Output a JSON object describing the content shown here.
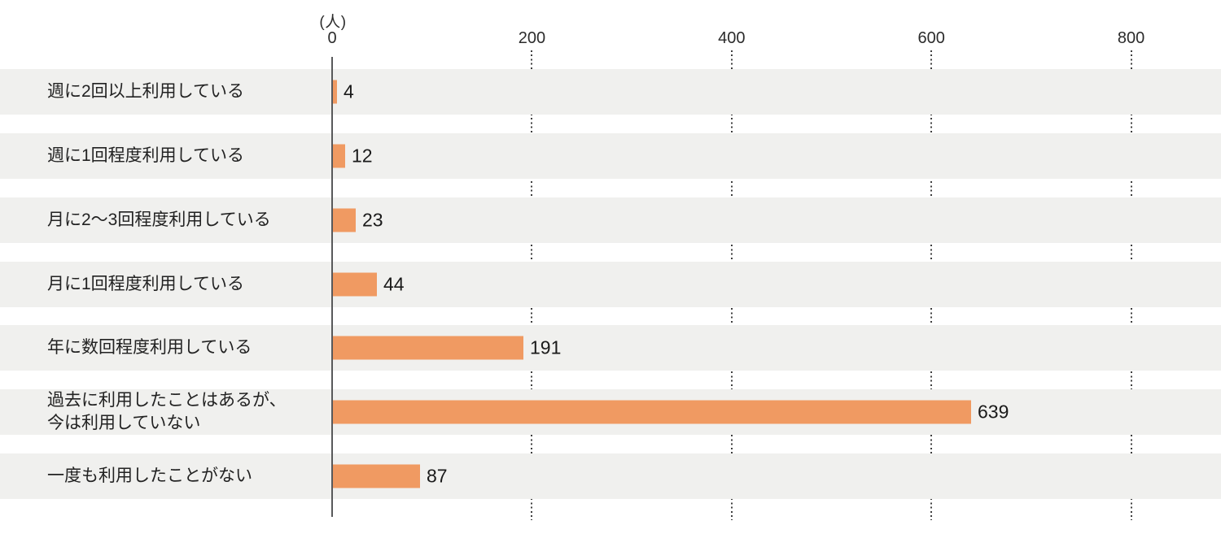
{
  "chart_data": {
    "type": "bar",
    "orientation": "horizontal",
    "title": "",
    "unit_label": "(人)",
    "xlabel": "",
    "ylabel": "",
    "categories": [
      "週に2回以上利用している",
      "週に1回程度利用している",
      "月に2〜3回程度利用している",
      "月に1回程度利用している",
      "年に数回程度利用している",
      "過去に利用したことはあるが、\n今は利用していない",
      "一度も利用したことがない"
    ],
    "values": [
      4,
      12,
      23,
      44,
      191,
      639,
      87
    ],
    "x_ticks": [
      0,
      200,
      400,
      600,
      800
    ],
    "xlim": [
      0,
      890
    ],
    "grid": "dotted-vertical-in-row-gaps",
    "legend": "none",
    "bar_color": "#f09a62",
    "band_color": "#f0f0ee",
    "axis_line_color": "#58595b",
    "gridline_color": "#3f3f3f",
    "label_text_color": "#222222",
    "value_text_color": "#1a1a1a"
  }
}
